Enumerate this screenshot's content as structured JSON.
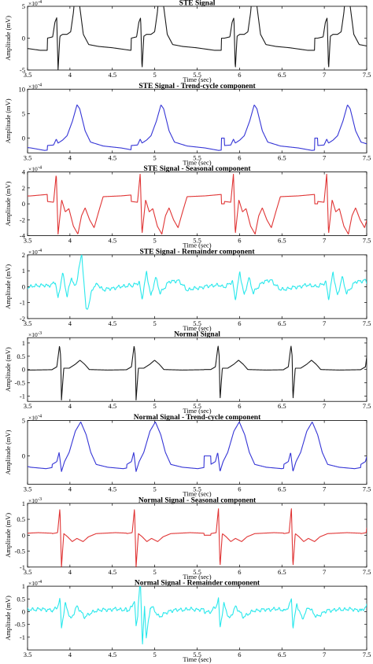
{
  "chart_data": [
    {
      "type": "line",
      "title": "STE Signal",
      "xlabel": "Time (sec)",
      "ylabel": "Amplitude (mV)",
      "exponent_base": "10",
      "exponent_power": "-4",
      "color": "#1a1a1a",
      "xlim": [
        3.5,
        7.5
      ],
      "ylim": [
        -5,
        5
      ],
      "xticks": [
        "3.5",
        "4",
        "4.5",
        "5",
        "5.5",
        "6",
        "6.5",
        "7",
        "7.5"
      ],
      "yticks": [
        "-5",
        "0",
        "5"
      ],
      "beats": [
        3.86,
        4.85,
        5.95,
        7.05
      ],
      "waveform": [
        [
          -0.12,
          0
        ],
        [
          -0.06,
          0.2
        ],
        [
          -0.035,
          2.5
        ],
        [
          -0.015,
          3.2
        ],
        [
          0,
          -5
        ],
        [
          0.02,
          0.3
        ],
        [
          0.05,
          0.6
        ],
        [
          0.1,
          0.6
        ],
        [
          0.14,
          1.0
        ],
        [
          0.17,
          4.0
        ],
        [
          0.19,
          7.2
        ],
        [
          0.21,
          8.0
        ],
        [
          0.24,
          5.0
        ],
        [
          0.28,
          0.6
        ],
        [
          0.34,
          -1.0
        ],
        [
          0.45,
          -1.3
        ],
        [
          0.6,
          -1.5
        ],
        [
          0.8,
          -1.9
        ],
        [
          1.0,
          -1.9
        ]
      ]
    },
    {
      "type": "line",
      "title": "STE Signal - Trend-cycle component",
      "xlabel": "Time (sec)",
      "ylabel": "Amplitude (mV)",
      "exponent_base": "10",
      "exponent_power": "-4",
      "color": "#3535d6",
      "xlim": [
        3.5,
        7.5
      ],
      "ylim": [
        -3,
        10
      ],
      "xticks": [
        "3.5",
        "4",
        "4.5",
        "5",
        "5.5",
        "6",
        "6.5",
        "7",
        "7.5"
      ],
      "yticks": [
        "0",
        "5",
        "10"
      ],
      "beats": [
        3.86,
        4.85,
        5.95,
        7.05
      ],
      "waveform": [
        [
          -0.12,
          -1.5
        ],
        [
          -0.05,
          -1.4
        ],
        [
          -0.02,
          -0.2
        ],
        [
          0,
          -1.0
        ],
        [
          0.05,
          -0.4
        ],
        [
          0.1,
          0.5
        ],
        [
          0.16,
          3.5
        ],
        [
          0.21,
          6.8
        ],
        [
          0.24,
          6.0
        ],
        [
          0.3,
          1.5
        ],
        [
          0.36,
          -0.8
        ],
        [
          0.5,
          -1.6
        ],
        [
          0.7,
          -2.0
        ],
        [
          0.85,
          -2.5
        ],
        [
          0.9,
          -2.4
        ],
        [
          1.0,
          -1.6
        ]
      ]
    },
    {
      "type": "line",
      "title": "STE Signal - Seasonal component",
      "xlabel": "Time (sec)",
      "ylabel": "Amplitude (mV)",
      "exponent_base": "10",
      "exponent_power": "-4",
      "color": "#e03535",
      "xlim": [
        3.5,
        7.5
      ],
      "ylim": [
        -4,
        4
      ],
      "xticks": [
        "3.5",
        "4",
        "4.5",
        "5",
        "5.5",
        "6",
        "6.5",
        "7",
        "7.5"
      ],
      "yticks": [
        "-4",
        "-2",
        "0",
        "2",
        "4"
      ],
      "beats": [
        3.86,
        4.85,
        5.95,
        7.05
      ],
      "waveform": [
        [
          -0.12,
          0.3
        ],
        [
          -0.05,
          0.2
        ],
        [
          -0.02,
          3.8
        ],
        [
          0,
          -3.8
        ],
        [
          0.04,
          0.5
        ],
        [
          0.08,
          -1.0
        ],
        [
          0.12,
          -0.6
        ],
        [
          0.17,
          -2.8
        ],
        [
          0.22,
          -3.8
        ],
        [
          0.26,
          -1.5
        ],
        [
          0.3,
          -0.5
        ],
        [
          0.35,
          -2.0
        ],
        [
          0.4,
          -3.0
        ],
        [
          0.45,
          -1.0
        ],
        [
          0.5,
          0.9
        ],
        [
          0.7,
          1.0
        ],
        [
          0.9,
          1.2
        ],
        [
          1.0,
          1.4
        ]
      ]
    },
    {
      "type": "line",
      "title": "STE Signal - Remainder component",
      "xlabel": "Time (sec)",
      "ylabel": "Amplitude (mV)",
      "exponent_base": "10",
      "exponent_power": "-4",
      "color": "#2ae8ec",
      "xlim": [
        3.5,
        7.5
      ],
      "ylim": [
        -2,
        2
      ],
      "xticks": [
        "3.5",
        "4",
        "4.5",
        "5",
        "5.5",
        "6",
        "6.5",
        "7",
        "7.5"
      ],
      "yticks": [
        "-2",
        "-1",
        "0",
        "1",
        "2"
      ],
      "beats": [
        3.86,
        4.85,
        5.95,
        7.05
      ],
      "waveform": [
        [
          -0.12,
          0
        ],
        [
          -0.03,
          0.3
        ],
        [
          0,
          -0.8
        ],
        [
          0.05,
          0.9
        ],
        [
          0.1,
          -0.6
        ],
        [
          0.15,
          0.6
        ],
        [
          0.2,
          -0.4
        ],
        [
          0.3,
          0.3
        ],
        [
          0.4,
          0.4
        ],
        [
          0.5,
          -0.2
        ],
        [
          0.6,
          -0.1
        ],
        [
          0.8,
          0.1
        ],
        [
          1.0,
          0
        ]
      ],
      "big_event": [
        [
          4.05,
          0.0
        ],
        [
          4.1,
          1.2
        ],
        [
          4.14,
          2.0
        ],
        [
          4.16,
          0.4
        ],
        [
          4.19,
          -1.8
        ],
        [
          4.22,
          -1.5
        ],
        [
          4.26,
          -0.6
        ],
        [
          4.32,
          -0.1
        ]
      ]
    },
    {
      "type": "line",
      "title": "Normal Signal",
      "xlabel": "Time (sec)",
      "ylabel": "Amplitude (mV)",
      "exponent_base": "10",
      "exponent_power": "-3",
      "color": "#1a1a1a",
      "xlim": [
        3.5,
        7.5
      ],
      "ylim": [
        -1.2,
        1.2
      ],
      "xticks": [
        "3.5",
        "4",
        "4.5",
        "5",
        "5.5",
        "6",
        "6.5",
        "7",
        "7.5"
      ],
      "yticks": [
        "-1",
        "-0.5",
        "0",
        "0.5",
        "1"
      ],
      "beats": [
        3.9,
        4.78,
        5.77,
        6.63
      ],
      "waveform": [
        [
          -0.12,
          0.0
        ],
        [
          -0.06,
          0.1
        ],
        [
          -0.025,
          0.9
        ],
        [
          -0.01,
          0.5
        ],
        [
          0,
          -1.15
        ],
        [
          0.03,
          0.05
        ],
        [
          0.1,
          0.05
        ],
        [
          0.18,
          0.2
        ],
        [
          0.24,
          0.35
        ],
        [
          0.3,
          0.2
        ],
        [
          0.36,
          0.0
        ],
        [
          0.6,
          -0.02
        ],
        [
          1.0,
          0.0
        ]
      ]
    },
    {
      "type": "line",
      "title": "Normal Signal - Trend-cycle component",
      "xlabel": "Time (sec)",
      "ylabel": "Amplitude (mV)",
      "exponent_base": "10",
      "exponent_power": "-4",
      "color": "#3535d6",
      "xlim": [
        3.5,
        7.5
      ],
      "ylim": [
        -4,
        5
      ],
      "xticks": [
        "3.5",
        "4",
        "4.5",
        "5",
        "5.5",
        "6",
        "6.5",
        "7",
        "7.5"
      ],
      "yticks": [
        "0",
        "5"
      ],
      "beats": [
        3.9,
        4.78,
        5.77,
        6.63
      ],
      "waveform": [
        [
          -0.12,
          -1.2
        ],
        [
          -0.06,
          -0.8
        ],
        [
          -0.03,
          0.5
        ],
        [
          0,
          -2.2
        ],
        [
          0.04,
          -0.8
        ],
        [
          0.1,
          0.5
        ],
        [
          0.18,
          3.5
        ],
        [
          0.25,
          4.8
        ],
        [
          0.32,
          3.0
        ],
        [
          0.38,
          0.5
        ],
        [
          0.45,
          -1.2
        ],
        [
          0.6,
          -1.6
        ],
        [
          0.8,
          -1.8
        ],
        [
          1.0,
          -1.4
        ]
      ]
    },
    {
      "type": "line",
      "title": "Normal Signal - Seasonal component",
      "xlabel": "Time (sec)",
      "ylabel": "Amplitude (mV)",
      "exponent_base": "10",
      "exponent_power": "-3",
      "color": "#e03535",
      "xlim": [
        3.5,
        7.5
      ],
      "ylim": [
        -1,
        1
      ],
      "xticks": [
        "3.5",
        "4",
        "4.5",
        "5",
        "5.5",
        "6",
        "6.5",
        "7",
        "7.5"
      ],
      "yticks": [
        "-1",
        "-0.5",
        "0",
        "0.5",
        "1"
      ],
      "beats": [
        3.9,
        4.78,
        5.77,
        6.63
      ],
      "waveform": [
        [
          -0.12,
          0.05
        ],
        [
          -0.05,
          0.08
        ],
        [
          -0.02,
          0.85
        ],
        [
          0,
          -1.0
        ],
        [
          0.03,
          0.05
        ],
        [
          0.08,
          -0.05
        ],
        [
          0.14,
          -0.2
        ],
        [
          0.2,
          -0.1
        ],
        [
          0.28,
          -0.2
        ],
        [
          0.35,
          -0.05
        ],
        [
          0.45,
          0.05
        ],
        [
          0.7,
          0.08
        ],
        [
          1.0,
          0.05
        ]
      ]
    },
    {
      "type": "line",
      "title": "Normal Signal - Remainder component",
      "xlabel": "Time (sec)",
      "ylabel": "Amplitude (mV)",
      "exponent_base": "10",
      "exponent_power": "-4",
      "color": "#2ae8ec",
      "xlim": [
        3.5,
        7.5
      ],
      "ylim": [
        -1.5,
        1
      ],
      "xticks": [
        "3.5",
        "4",
        "4.5",
        "5",
        "5.5",
        "6",
        "6.5",
        "7",
        "7.5"
      ],
      "yticks": [
        "-1",
        "-0.5",
        "0",
        "0.5",
        "1"
      ],
      "beats": [
        3.9,
        4.78,
        5.77,
        6.63
      ],
      "waveform": [
        [
          -0.12,
          0
        ],
        [
          -0.05,
          0.2
        ],
        [
          -0.02,
          0.5
        ],
        [
          0,
          -0.6
        ],
        [
          0.05,
          0.3
        ],
        [
          0.12,
          -0.3
        ],
        [
          0.2,
          0.2
        ],
        [
          0.3,
          -0.2
        ],
        [
          0.45,
          0.05
        ],
        [
          0.7,
          0.1
        ],
        [
          1.0,
          0.05
        ]
      ],
      "big_event": [
        [
          4.8,
          0.2
        ],
        [
          4.83,
          1.0
        ],
        [
          4.855,
          -1.4
        ],
        [
          4.88,
          0.5
        ],
        [
          4.9,
          -0.8
        ],
        [
          4.95,
          0.1
        ]
      ]
    }
  ]
}
